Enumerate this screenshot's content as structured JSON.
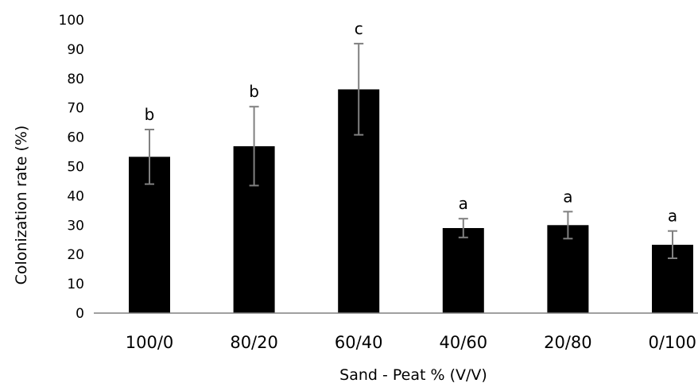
{
  "chart_data": {
    "type": "bar",
    "title": "",
    "xlabel": "Sand - Peat % (V/V)",
    "ylabel": "Colonization rate (%)",
    "ylim": [
      0,
      100
    ],
    "yticks": [
      0,
      10,
      20,
      30,
      40,
      50,
      60,
      70,
      80,
      90,
      100
    ],
    "grid": false,
    "categories": [
      "100/0",
      "80/20",
      "60/40",
      "40/60",
      "20/80",
      "0/100"
    ],
    "values": [
      53.3,
      56.9,
      76.3,
      29.0,
      30.0,
      23.3
    ],
    "error_low": [
      44.0,
      43.5,
      60.8,
      25.8,
      25.4,
      18.7
    ],
    "error_high": [
      62.6,
      70.4,
      91.9,
      32.2,
      34.6,
      28.0
    ],
    "significance": [
      "b",
      "b",
      "c",
      "a",
      "a",
      "a"
    ],
    "colors": {
      "bar": "#000000",
      "error_bar": "#808080",
      "axis": "#808080"
    }
  }
}
